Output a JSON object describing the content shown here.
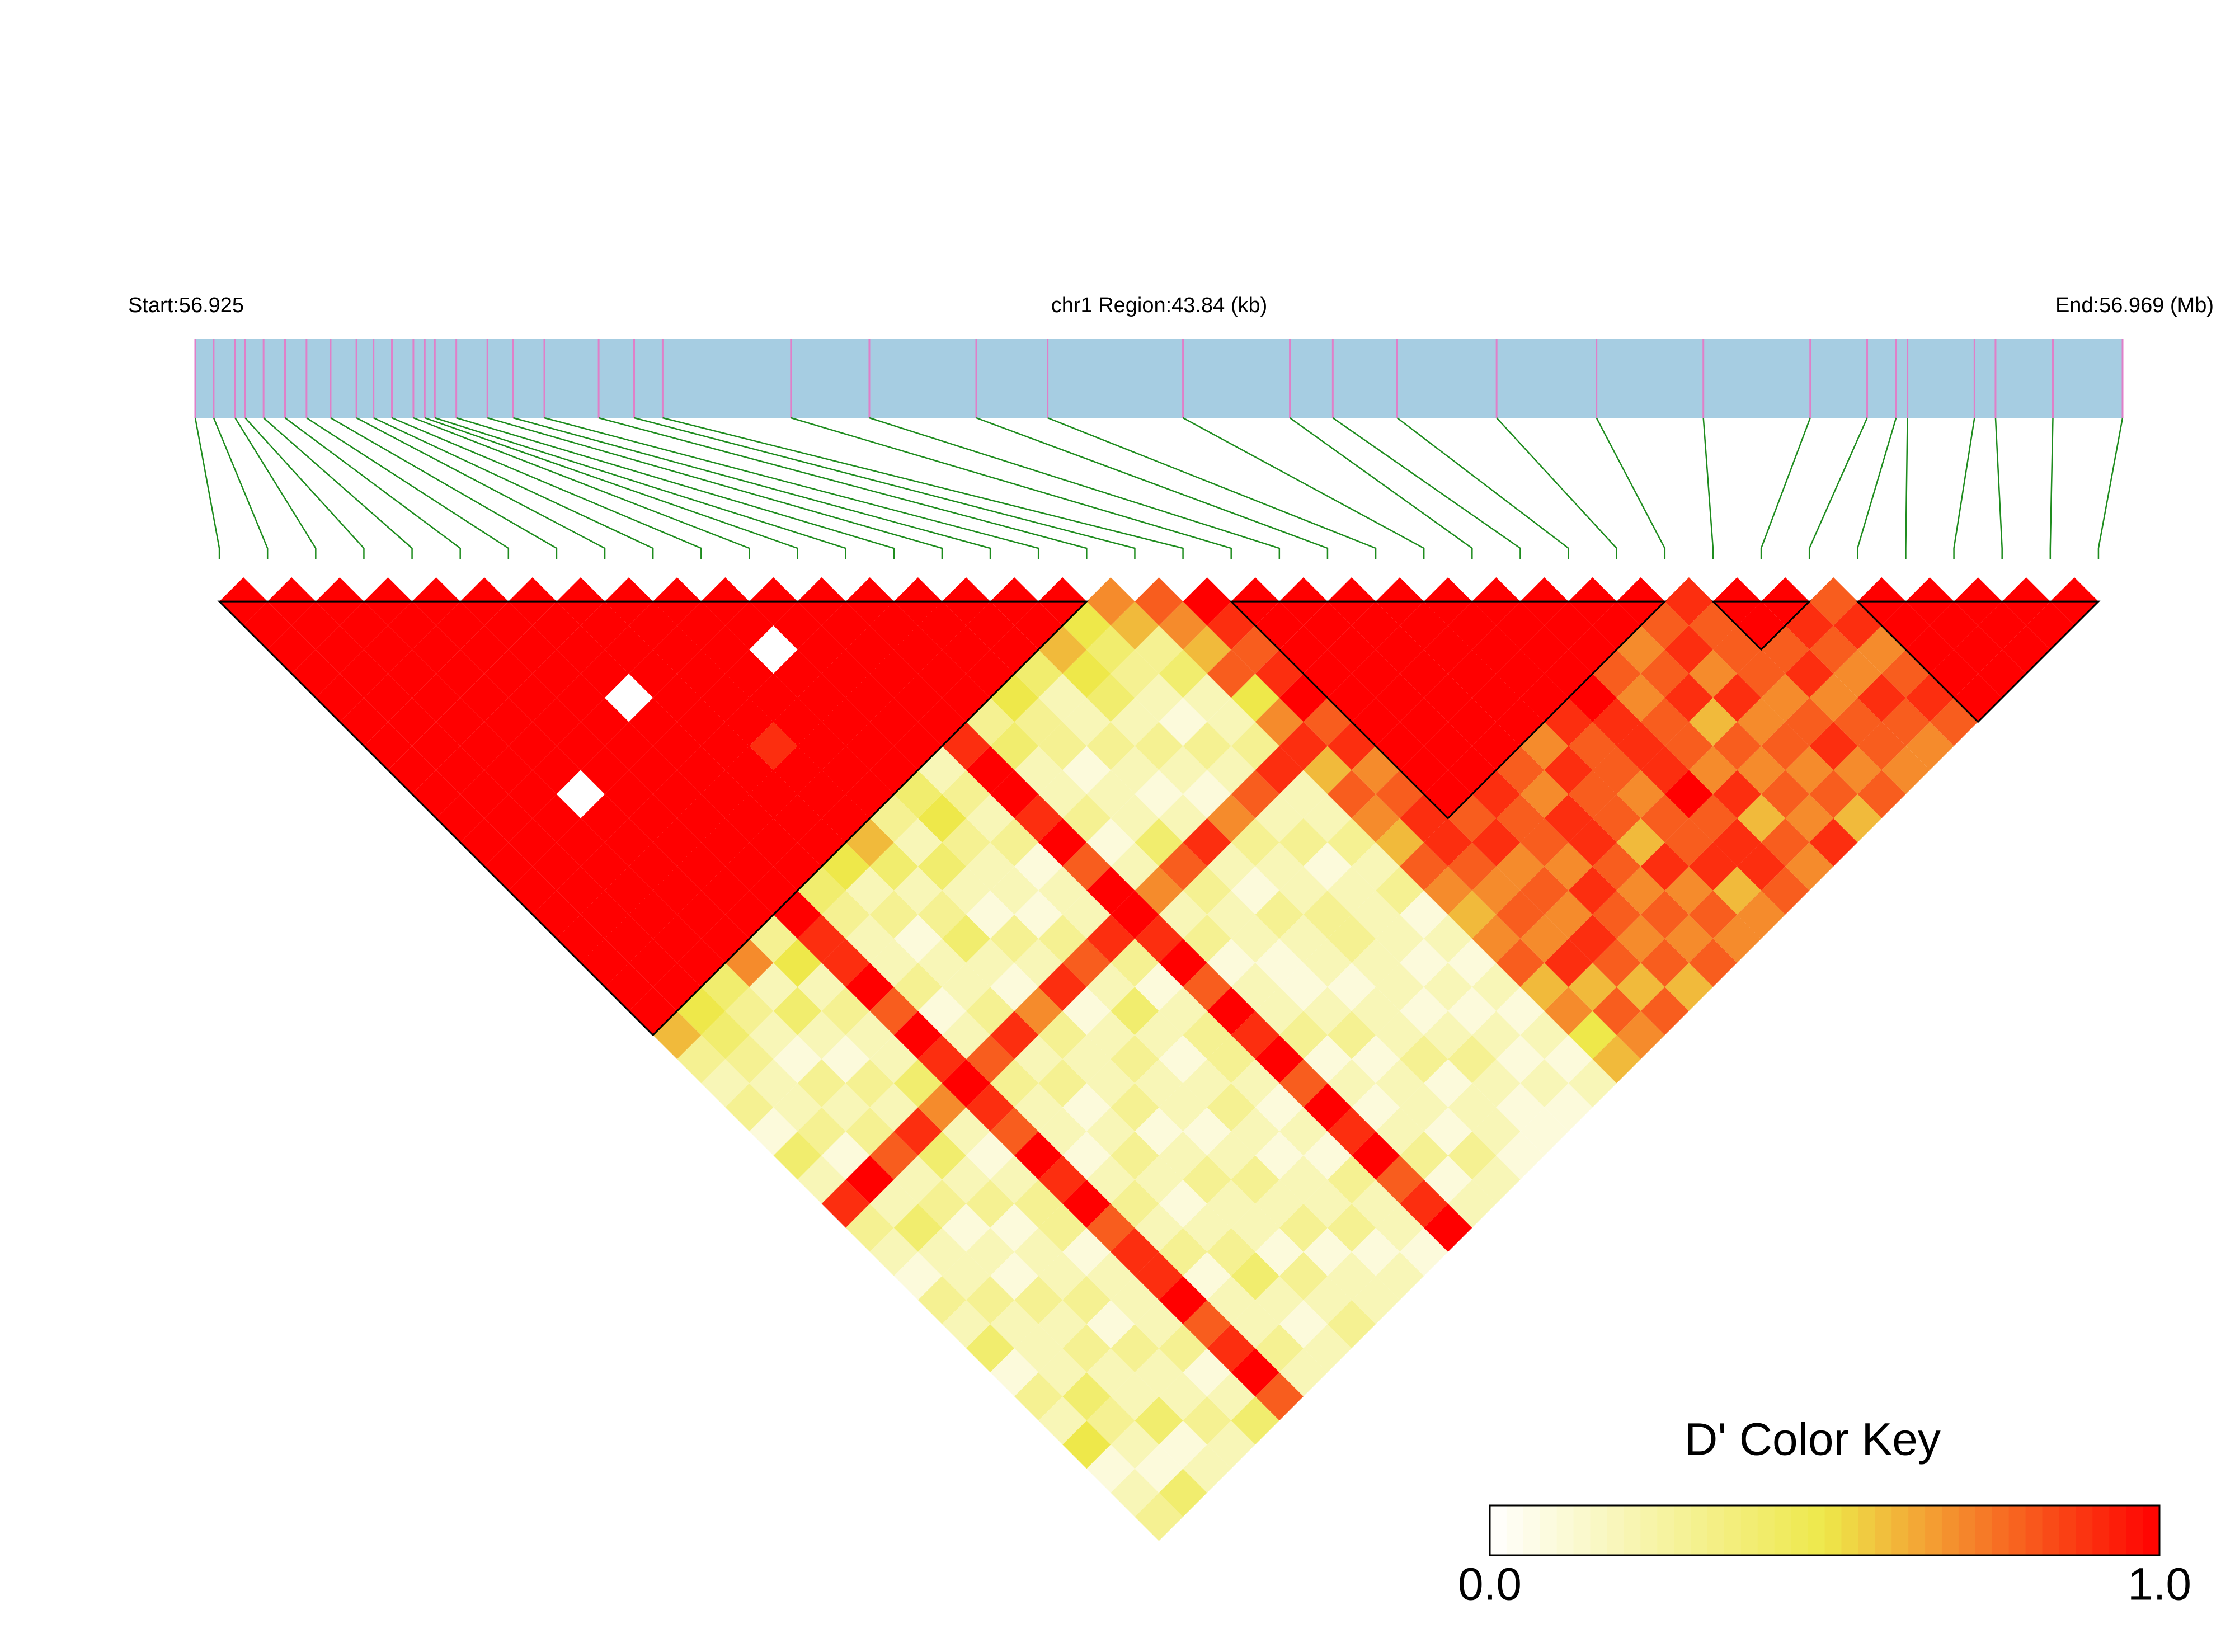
{
  "chart_data": {
    "type": "heatmap",
    "start_label": "Start:56.925",
    "region_label": "chr1 Region:43.84 (kb)",
    "end_label": "End:56.969 (Mb)",
    "key_title": "D' Color Key",
    "xlim": [
      56.925,
      56.969
    ],
    "positions": [
      56.925,
      56.92542,
      56.92591,
      56.92614,
      56.92656,
      56.92705,
      56.92754,
      56.92809,
      56.92868,
      56.92907,
      56.92949,
      56.92998,
      56.93024,
      56.93047,
      56.93096,
      56.93167,
      56.93226,
      56.93297,
      56.93421,
      56.93502,
      56.93567,
      56.9386,
      56.94039,
      56.94283,
      56.94446,
      56.94755,
      56.94999,
      56.95097,
      56.95244,
      56.95471,
      56.95699,
      56.95943,
      56.96187,
      56.96317,
      56.96383,
      56.96409,
      56.96562,
      56.9661,
      56.96741,
      56.969
    ],
    "ld_matrix": [
      [
        1,
        1,
        1,
        1,
        1,
        1,
        1,
        1,
        1,
        1,
        1,
        1,
        1,
        1,
        1,
        1,
        1,
        1,
        0.6,
        0.3,
        0.2,
        0.3,
        0.1,
        0.4,
        0.2,
        0.9,
        0.3,
        0.2,
        0.1,
        0.3,
        0.2,
        0.4,
        0.1,
        0.3,
        0.2,
        0.5,
        0.1,
        0.2,
        0.3
      ],
      [
        1,
        1,
        1,
        1,
        1,
        1,
        1,
        1,
        1,
        1,
        1,
        1,
        1,
        1,
        1,
        1,
        1,
        0.5,
        0.4,
        0.3,
        0.2,
        0.2,
        0.3,
        0.1,
        1,
        0.2,
        0.4,
        0.2,
        0.2,
        0.3,
        0.2,
        0.2,
        0.2,
        0.4,
        0.3,
        0.2,
        0.1,
        0.4
      ],
      [
        1,
        1,
        1,
        1,
        1,
        1,
        1,
        1,
        1,
        1,
        1,
        1,
        1,
        1,
        1,
        1,
        0.4,
        0.3,
        0.2,
        0.1,
        0.3,
        0.2,
        0.3,
        0.8,
        0.2,
        0.3,
        0.1,
        0.2,
        0.1,
        0.3,
        0.2,
        0.3,
        0.2,
        0.2,
        0.4,
        0.1,
        0.2
      ],
      [
        1,
        1,
        1,
        1,
        1,
        1,
        1,
        1,
        0,
        1,
        1,
        1,
        1,
        1,
        1,
        0.7,
        0.2,
        0.4,
        0.2,
        0.1,
        0.3,
        0.2,
        0.9,
        0.4,
        0.2,
        0.3,
        0.1,
        0.2,
        0.2,
        0.3,
        0.1,
        0.3,
        0.2,
        0.2,
        0.3,
        0.2
      ],
      [
        1,
        1,
        1,
        1,
        1,
        1,
        1,
        1,
        1,
        1,
        1,
        1,
        1,
        1,
        0.3,
        0.5,
        0.2,
        0.3,
        0.2,
        0.2,
        0.4,
        0.7,
        0.2,
        0.1,
        0.2,
        0.3,
        0.3,
        0.1,
        0.2,
        0.2,
        0.2,
        0.3,
        0.1,
        0.2,
        0.4
      ],
      [
        1,
        1,
        1,
        1,
        1,
        1,
        1,
        1,
        1,
        1,
        1,
        1,
        1,
        1,
        0.9,
        0.9,
        1,
        0.8,
        1,
        0.9,
        1,
        0.9,
        0.8,
        1,
        0.9,
        1,
        0.8,
        0.9,
        0.9,
        1,
        0.8,
        0.9,
        1,
        0.8
      ],
      [
        1,
        1,
        1,
        1,
        0,
        1,
        1,
        1,
        1,
        1,
        1,
        1,
        0.4,
        0.3,
        0.2,
        0.2,
        0.3,
        0.1,
        0.2,
        0.8,
        0.3,
        0.2,
        0.2,
        0.1,
        0.2,
        0.3,
        0.2,
        0.3,
        0.1,
        0.2,
        0.2,
        0.3,
        0.2
      ],
      [
        1,
        1,
        1,
        1,
        1,
        1,
        1,
        1,
        1,
        1,
        1,
        0.5,
        0.2,
        0.3,
        0.1,
        0.2,
        0.2,
        0.3,
        0.9,
        0.2,
        0.3,
        0.1,
        0.2,
        0.3,
        0.2,
        0.1,
        0.2,
        0.3,
        0.4,
        0.2,
        0.1,
        0.2
      ],
      [
        1,
        1,
        1,
        1,
        1,
        1,
        0.9,
        1,
        1,
        1,
        0.6,
        0.4,
        0.2,
        0.3,
        0.4,
        0.2,
        0.1,
        0.7,
        0.3,
        0.2,
        0.2,
        0.3,
        0.1,
        0.2,
        0.3,
        0.2,
        0.2,
        0.1,
        0.3,
        0.2,
        0.3
      ],
      [
        1,
        1,
        1,
        1,
        1,
        1,
        1,
        1,
        1,
        0.3,
        0.2,
        0.4,
        0.2,
        0.1,
        0.3,
        0.2,
        0.9,
        0.1,
        0.2,
        0.3,
        0.2,
        0.2,
        0.1,
        0.2,
        0.3,
        0.2,
        0.3,
        0.1,
        0.2,
        0.2
      ],
      [
        1,
        1,
        0,
        1,
        1,
        1,
        1,
        1,
        0.4,
        0.5,
        0.3,
        0.2,
        0.2,
        0.1,
        0.3,
        0.8,
        0.2,
        0.4,
        0.2,
        0.1,
        0.2,
        0.3,
        0.2,
        0.1,
        0.2,
        0.2,
        0.3,
        0.1,
        0.2
      ],
      [
        1,
        1,
        1,
        1,
        1,
        1,
        1,
        0.2,
        0.3,
        0.2,
        0.3,
        0.1,
        0.2,
        0.2,
        0.9,
        0.3,
        0.1,
        0.2,
        0.3,
        0.3,
        0.2,
        0.1,
        0.2,
        0.1,
        0.3,
        0.2,
        0.2,
        0.1
      ],
      [
        1,
        1,
        1,
        1,
        1,
        1,
        0.9,
        1,
        1,
        0.9,
        1,
        0.8,
        1,
        1,
        0.9,
        1,
        0.8,
        1,
        0.9,
        1,
        0.8,
        1,
        0.9,
        1,
        0.8,
        0.9,
        1
      ],
      [
        1,
        1,
        1,
        1,
        1,
        0.3,
        0.4,
        0.2,
        0.2,
        0.3,
        0.1,
        0.2,
        0.7,
        0.2,
        0.3,
        0.1,
        0.2,
        0.2,
        0.3,
        0.1,
        0.2,
        0.1,
        0.2,
        0.3,
        0.1,
        0.2
      ],
      [
        1,
        1,
        1,
        1,
        0.5,
        0.3,
        0.3,
        0.1,
        0.2,
        0.2,
        0.4,
        0.8,
        0.3,
        0.2,
        0.2,
        0.1,
        0.1,
        0.2,
        0.3,
        0.1,
        0.2,
        0.2,
        0.1,
        0.3,
        0.2
      ],
      [
        1,
        1,
        1,
        0.4,
        0.2,
        0.2,
        0.3,
        0.2,
        0.1,
        0.2,
        0.9,
        0.2,
        0.1,
        0.3,
        0.2,
        0.2,
        0.1,
        0.2,
        0.2,
        0.3,
        0.1,
        0.2,
        0.2,
        0.1
      ],
      [
        1,
        1,
        0.6,
        0.5,
        0.4,
        0.2,
        0.3,
        0.2,
        0.1,
        0.7,
        0.3,
        0.2,
        0.2,
        0.3,
        0.3,
        0.2,
        0.2,
        0.1,
        0.2,
        0.3,
        0.2,
        0.1,
        0.1
      ],
      [
        1,
        0.5,
        0.4,
        0.3,
        0.2,
        0.1,
        0.3,
        0.2,
        0.8,
        0.2,
        0.3,
        0.1,
        0.2,
        0.2,
        0.2,
        0.1,
        0.2,
        0.1,
        0.2,
        0.1,
        0.2,
        0.1
      ],
      [
        0.7,
        0.6,
        0.3,
        0.4,
        0.2,
        0.2,
        0.3,
        0.9,
        0.2,
        0.2,
        0.3,
        0.2,
        0.3,
        0.1,
        0.2,
        0.1,
        0.2,
        0.1,
        0.2,
        0.1,
        0.2
      ],
      [
        0.8,
        0.7,
        0.6,
        0.8,
        0.5,
        0.7,
        0.9,
        0.6,
        0.8,
        0.7,
        0.6,
        0.8,
        0.7,
        0.6,
        0.7,
        0.8,
        0.6,
        0.7,
        0.5,
        0.6
      ],
      [
        1,
        0.9,
        0.8,
        0.9,
        1,
        0.8,
        0.9,
        0.7,
        0.8,
        0.9,
        0.9,
        0.8,
        0.7,
        0.8,
        0.7,
        0.9,
        0.6,
        0.8,
        0.7
      ],
      [
        1,
        1,
        1,
        1,
        1,
        1,
        1,
        1,
        1,
        0.8,
        0.9,
        0.7,
        0.8,
        0.7,
        0.9,
        0.8,
        0.6,
        0.8
      ],
      [
        1,
        1,
        1,
        1,
        1,
        1,
        1,
        1,
        0.9,
        0.8,
        0.8,
        0.7,
        0.9,
        0.8,
        0.7,
        0.8,
        0.6
      ],
      [
        1,
        1,
        1,
        1,
        1,
        1,
        1,
        0.8,
        0.7,
        0.9,
        0.9,
        0.8,
        0.7,
        0.8,
        0.7,
        0.8
      ],
      [
        1,
        1,
        1,
        1,
        1,
        1,
        0.7,
        0.9,
        0.8,
        0.8,
        0.6,
        0.9,
        0.7,
        0.8,
        0.7
      ],
      [
        1,
        1,
        1,
        1,
        1,
        0.9,
        0.8,
        0.8,
        0.7,
        0.8,
        0.8,
        0.9,
        0.6,
        0.7
      ],
      [
        1,
        1,
        1,
        1,
        1,
        0.9,
        0.9,
        0.9,
        1,
        0.8,
        0.9,
        0.9,
        0.8
      ],
      [
        1,
        1,
        1,
        0.8,
        0.7,
        0.8,
        0.8,
        0.7,
        0.9,
        0.6,
        0.8,
        0.7
      ],
      [
        1,
        1,
        0.7,
        0.8,
        0.9,
        0.6,
        0.8,
        0.7,
        0.8,
        0.7,
        0.9
      ],
      [
        1,
        0.8,
        0.9,
        0.7,
        0.9,
        0.7,
        0.8,
        0.7,
        0.8,
        0.6
      ],
      [
        0.9,
        0.8,
        0.8,
        0.8,
        0.7,
        0.8,
        0.9,
        0.7,
        0.8
      ],
      [
        1,
        1,
        0.8,
        0.9,
        0.7,
        0.8,
        0.8,
        0.7
      ],
      [
        1,
        0.9,
        0.8,
        0.7,
        0.9,
        0.8,
        0.7
      ],
      [
        0.8,
        0.9,
        0.7,
        0.8,
        0.9,
        0.8
      ],
      [
        1,
        1,
        1,
        1,
        1
      ],
      [
        1,
        1,
        1,
        1
      ],
      [
        1,
        1,
        1
      ],
      [
        1,
        1
      ],
      [
        1
      ]
    ],
    "blocks": [
      [
        0,
        18
      ],
      [
        21,
        30
      ],
      [
        31,
        33
      ],
      [
        34,
        39
      ]
    ],
    "colors": [
      "#ffffff",
      "#eee84a",
      "#ff0000"
    ],
    "key_ticks": [
      {
        "value": 0,
        "label": "0.0"
      },
      {
        "value": 1,
        "label": "1.0"
      }
    ],
    "bar_color": "#a6cde2",
    "snp_line_color": "#e07fc8",
    "link_color": "#1e8c1e"
  }
}
